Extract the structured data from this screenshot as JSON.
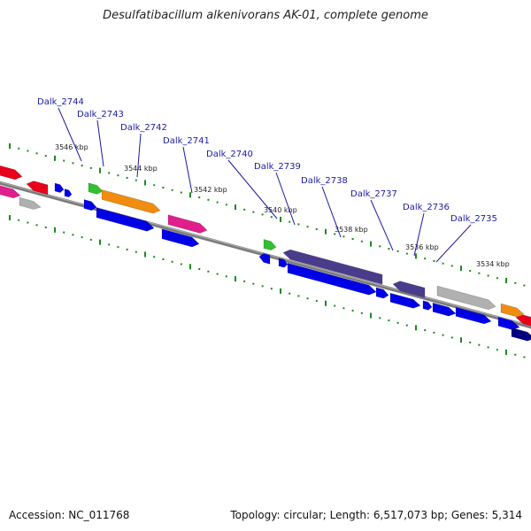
{
  "title": "Desulfatibacillum alkenivorans AK-01, complete genome",
  "accession": "Accession: NC_011768",
  "summary": "Topology: circular; Length: 6,517,073 bp; Genes: 5,314",
  "colors": {
    "ruler": "#1a8a1a",
    "label": "#1a1aa6",
    "backbone": "#808080",
    "leader": "#1a1aa6"
  },
  "kbp_ticks": [
    {
      "label": "3546 kbp"
    },
    {
      "label": "3544 kbp"
    },
    {
      "label": "3542 kbp"
    },
    {
      "label": "3540 kbp"
    },
    {
      "label": "3538 kbp"
    },
    {
      "label": "3536 kbp"
    },
    {
      "label": "3534 kbp"
    }
  ],
  "gene_labels": [
    {
      "name": "Dalk_2744"
    },
    {
      "name": "Dalk_2743"
    },
    {
      "name": "Dalk_2742"
    },
    {
      "name": "Dalk_2741"
    },
    {
      "name": "Dalk_2740"
    },
    {
      "name": "Dalk_2739"
    },
    {
      "name": "Dalk_2738"
    },
    {
      "name": "Dalk_2737"
    },
    {
      "name": "Dalk_2736"
    },
    {
      "name": "Dalk_2735"
    }
  ]
}
